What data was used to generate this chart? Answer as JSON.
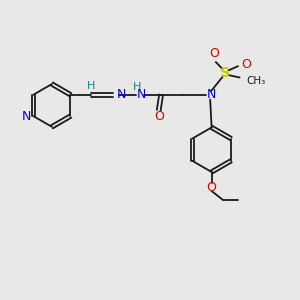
{
  "bg": "#e8e8e8",
  "bond_color": "#1a1a1a",
  "N_color": "#0000dd",
  "O_color": "#dd0000",
  "S_color": "#cccc00",
  "C_color": "#1a1a1a",
  "H_color": "#008888",
  "fs": 8.5,
  "lw": 1.3,
  "xlim": [
    0,
    10
  ],
  "ylim": [
    0,
    10
  ]
}
